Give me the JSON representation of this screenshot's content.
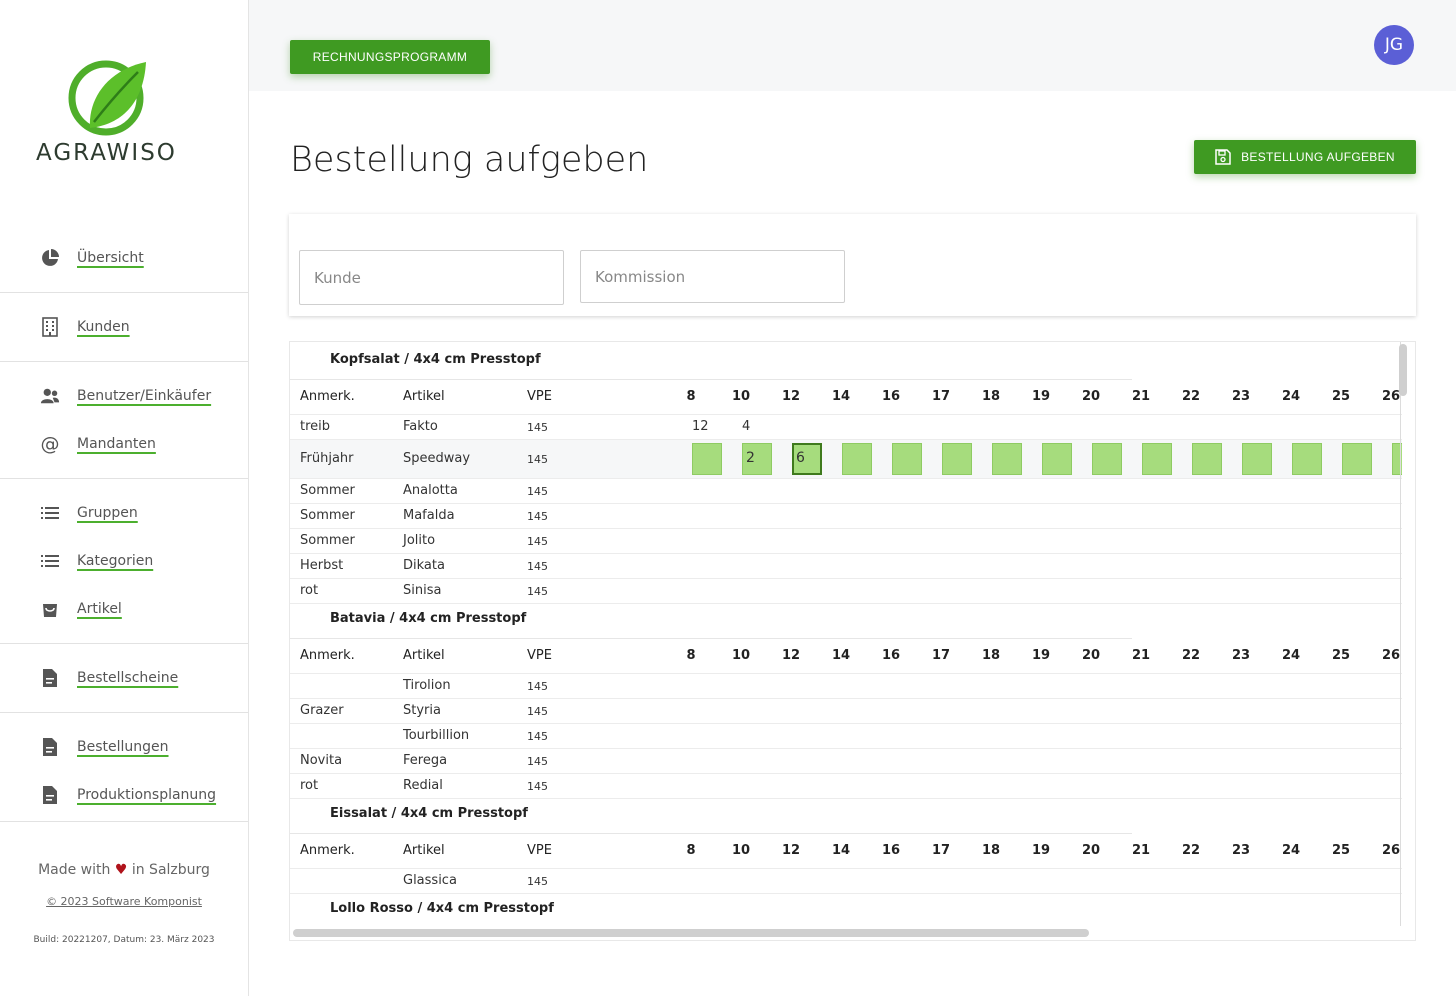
{
  "brand": {
    "name": "AGRAWISO"
  },
  "sidebar": {
    "items": [
      {
        "label": "Übersicht",
        "icon": "pie-chart-icon"
      },
      {
        "label": "Kunden",
        "icon": "building-icon"
      },
      {
        "label": "Benutzer/Einkäufer",
        "icon": "users-icon"
      },
      {
        "label": "Mandanten",
        "icon": "at-icon"
      },
      {
        "label": "Gruppen",
        "icon": "list-icon"
      },
      {
        "label": "Kategorien",
        "icon": "list-icon"
      },
      {
        "label": "Artikel",
        "icon": "bag-icon"
      },
      {
        "label": "Bestellscheine",
        "icon": "document-icon"
      },
      {
        "label": "Bestellungen",
        "icon": "document-icon"
      },
      {
        "label": "Produktionsplanung",
        "icon": "document-icon"
      }
    ],
    "footer": {
      "made_prefix": "Made with",
      "made_suffix": "in Salzburg",
      "copyright": "© 2023 Software Komponist",
      "build": "Build: 20221207, Datum: 23. März 2023"
    }
  },
  "topbar": {
    "rechnung_label": "RECHNUNGSPROGRAMM",
    "avatar": "JG"
  },
  "page": {
    "title": "Bestellung aufgeben",
    "submit_label": "BESTELLUNG AUFGEBEN"
  },
  "form": {
    "kunde_placeholder": "Kunde",
    "kommission_placeholder": "Kommission"
  },
  "table": {
    "headers": {
      "anmerk": "Anmerk.",
      "artikel": "Artikel",
      "vpe": "VPE"
    },
    "weeks": [
      "8",
      "10",
      "12",
      "14",
      "16",
      "17",
      "18",
      "19",
      "20",
      "21",
      "22",
      "23",
      "24",
      "25",
      "26"
    ],
    "groups": [
      {
        "title": "Kopfsalat / 4x4 cm Presstopf",
        "rows": [
          {
            "anmerk": "treib",
            "artikel": "Fakto",
            "vpe": "145",
            "quantities": [
              "12",
              "4"
            ]
          },
          {
            "anmerk": "Frühjahr",
            "artikel": "Speedway",
            "vpe": "145",
            "inputs": [
              "",
              "2",
              "6",
              "",
              "",
              "",
              "",
              "",
              "",
              "",
              "",
              "",
              "",
              "",
              ""
            ]
          },
          {
            "anmerk": "Sommer",
            "artikel": "Analotta",
            "vpe": "145"
          },
          {
            "anmerk": "Sommer",
            "artikel": "Mafalda",
            "vpe": "145"
          },
          {
            "anmerk": "Sommer",
            "artikel": "Jolito",
            "vpe": "145"
          },
          {
            "anmerk": "Herbst",
            "artikel": "Dikata",
            "vpe": "145"
          },
          {
            "anmerk": "rot",
            "artikel": "Sinisa",
            "vpe": "145"
          }
        ]
      },
      {
        "title": "Batavia / 4x4 cm Presstopf",
        "rows": [
          {
            "anmerk": "",
            "artikel": "Tirolion",
            "vpe": "145"
          },
          {
            "anmerk": "Grazer",
            "artikel": "Styria",
            "vpe": "145"
          },
          {
            "anmerk": "",
            "artikel": "Tourbillion",
            "vpe": "145"
          },
          {
            "anmerk": "Novita",
            "artikel": "Ferega",
            "vpe": "145"
          },
          {
            "anmerk": "rot",
            "artikel": "Redial",
            "vpe": "145"
          }
        ]
      },
      {
        "title": "Eissalat / 4x4 cm Presstopf",
        "rows": [
          {
            "anmerk": "",
            "artikel": "Glassica",
            "vpe": "145"
          }
        ]
      },
      {
        "title": "Lollo Rosso / 4x4 cm Presstopf",
        "rows": []
      }
    ]
  },
  "colors": {
    "accent": "#3f9a22",
    "cell_green": "#a6dc7d",
    "avatar": "#5b5fd6"
  }
}
